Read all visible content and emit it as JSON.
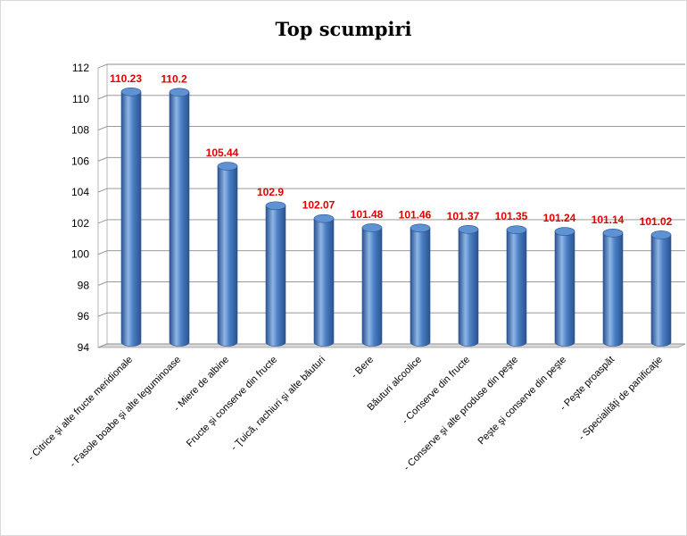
{
  "chart_data": {
    "type": "bar",
    "title": "Top scumpiri",
    "categories": [
      "- Citrice şi alte fructe meridionale",
      "- Fasole boabe şi alte leguminoase",
      "- Miere de albine",
      "Fructe şi conserve din fructe",
      "- Ţuică, rachiuri şi alte băuturi",
      "- Bere",
      "Băuturi alcoolice",
      "- Conserve din fructe",
      "- Conserve şi alte produse din peşte",
      "Peşte şi conserve din peşte",
      "- Peşte proaspăt",
      "- Specialităţi de panificaţie"
    ],
    "values": [
      110.23,
      110.2,
      105.44,
      102.9,
      102.07,
      101.48,
      101.46,
      101.37,
      101.35,
      101.24,
      101.14,
      101.02
    ],
    "data_labels": [
      "110.23",
      "110.2",
      "105.44",
      "102.9",
      "102.07",
      "101.48",
      "101.46",
      "101.37",
      "101.35",
      "101.24",
      "101.14",
      "101.02"
    ],
    "yticks": [
      "94",
      "96",
      "98",
      "100",
      "102",
      "104",
      "106",
      "108",
      "110",
      "112"
    ],
    "ylim": [
      94,
      112
    ],
    "grid": true,
    "legend": "none",
    "colors": {
      "bar": "#4a7fc4",
      "bar_dark": "#2a528f",
      "bar_light": "#8fb6e6",
      "data_label": "#e00000",
      "grid": "#8c8c8c"
    }
  }
}
